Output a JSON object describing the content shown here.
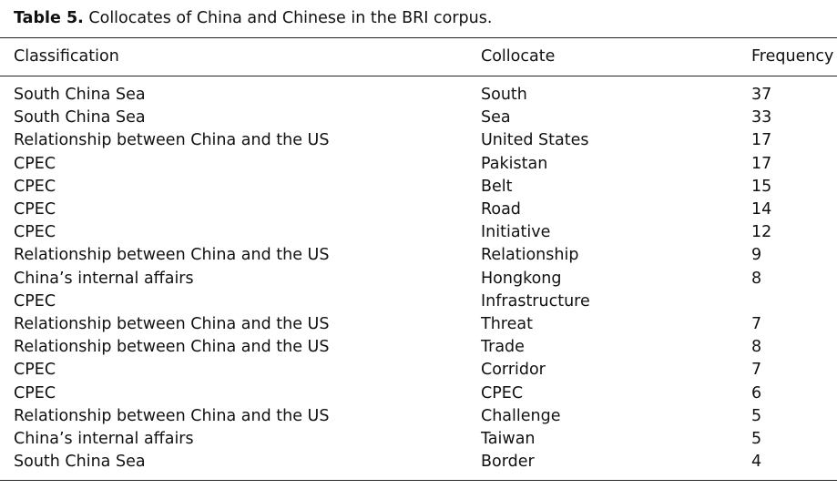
{
  "caption": {
    "label": "Table 5.",
    "text": "Collocates of China and Chinese in the BRI corpus."
  },
  "table": {
    "headers": [
      "Classification",
      "Collocate",
      "Frequency"
    ],
    "rows": [
      {
        "classification": "South China Sea",
        "collocate": "South",
        "frequency": "37"
      },
      {
        "classification": "South China Sea",
        "collocate": "Sea",
        "frequency": "33"
      },
      {
        "classification": "Relationship between China and the US",
        "collocate": "United States",
        "frequency": "17"
      },
      {
        "classification": "CPEC",
        "collocate": "Pakistan",
        "frequency": "17"
      },
      {
        "classification": "CPEC",
        "collocate": "Belt",
        "frequency": "15"
      },
      {
        "classification": "CPEC",
        "collocate": "Road",
        "frequency": "14"
      },
      {
        "classification": "CPEC",
        "collocate": "Initiative",
        "frequency": "12"
      },
      {
        "classification": "Relationship between China and the US",
        "collocate": "Relationship",
        "frequency": "9"
      },
      {
        "classification": "China’s internal affairs",
        "collocate": "Hongkong",
        "frequency": "8"
      },
      {
        "classification": "CPEC",
        "collocate": "Infrastructure",
        "frequency": ""
      },
      {
        "classification": "Relationship between China and the US",
        "collocate": "Threat",
        "frequency": "7"
      },
      {
        "classification": "Relationship between China and the US",
        "collocate": "Trade",
        "frequency": "8"
      },
      {
        "classification": "CPEC",
        "collocate": "Corridor",
        "frequency": "7"
      },
      {
        "classification": "CPEC",
        "collocate": "CPEC",
        "frequency": "6"
      },
      {
        "classification": "Relationship between China and the US",
        "collocate": "Challenge",
        "frequency": "5"
      },
      {
        "classification": "China’s internal affairs",
        "collocate": "Taiwan",
        "frequency": "5"
      },
      {
        "classification": "South China Sea",
        "collocate": "Border",
        "frequency": "4"
      }
    ]
  }
}
